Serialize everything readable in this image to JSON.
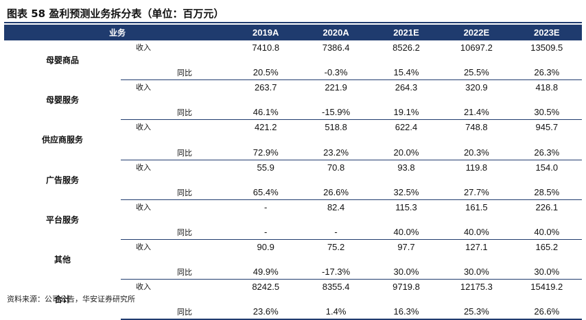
{
  "title": "图表 58  盈利预测业务拆分表（单位：百万元）",
  "header": {
    "segment": "业务",
    "years": [
      "2019A",
      "2020A",
      "2021E",
      "2022E",
      "2023E"
    ]
  },
  "labels": {
    "revenue": "收入",
    "yoy": "同比"
  },
  "rows": [
    {
      "segment": "母婴商品",
      "revenue": [
        "7410.8",
        "7386.4",
        "8526.2",
        "10697.2",
        "13509.5"
      ],
      "yoy": [
        "20.5%",
        "-0.3%",
        "15.4%",
        "25.5%",
        "26.3%"
      ]
    },
    {
      "segment": "母婴服务",
      "revenue": [
        "263.7",
        "221.9",
        "264.3",
        "320.9",
        "418.8"
      ],
      "yoy": [
        "46.1%",
        "-15.9%",
        "19.1%",
        "21.4%",
        "30.5%"
      ]
    },
    {
      "segment": "供应商服务",
      "revenue": [
        "421.2",
        "518.8",
        "622.4",
        "748.8",
        "945.7"
      ],
      "yoy": [
        "72.9%",
        "23.2%",
        "20.0%",
        "20.3%",
        "26.3%"
      ]
    },
    {
      "segment": "广告服务",
      "revenue": [
        "55.9",
        "70.8",
        "93.8",
        "119.8",
        "154.0"
      ],
      "yoy": [
        "65.4%",
        "26.6%",
        "32.5%",
        "27.7%",
        "28.5%"
      ]
    },
    {
      "segment": "平台服务",
      "revenue": [
        "-",
        "82.4",
        "115.3",
        "161.5",
        "226.1"
      ],
      "yoy": [
        "-",
        "-",
        "40.0%",
        "40.0%",
        "40.0%"
      ]
    },
    {
      "segment": "其他",
      "revenue": [
        "90.9",
        "75.2",
        "97.7",
        "127.1",
        "165.2"
      ],
      "yoy": [
        "49.9%",
        "-17.3%",
        "30.0%",
        "30.0%",
        "30.0%"
      ]
    },
    {
      "segment": "合计",
      "revenue": [
        "8242.5",
        "8355.4",
        "9719.8",
        "12175.3",
        "15419.2"
      ],
      "yoy": [
        "23.6%",
        "1.4%",
        "16.3%",
        "25.3%",
        "26.6%"
      ]
    }
  ],
  "source": "资料来源：公司公告，华安证券研究所"
}
